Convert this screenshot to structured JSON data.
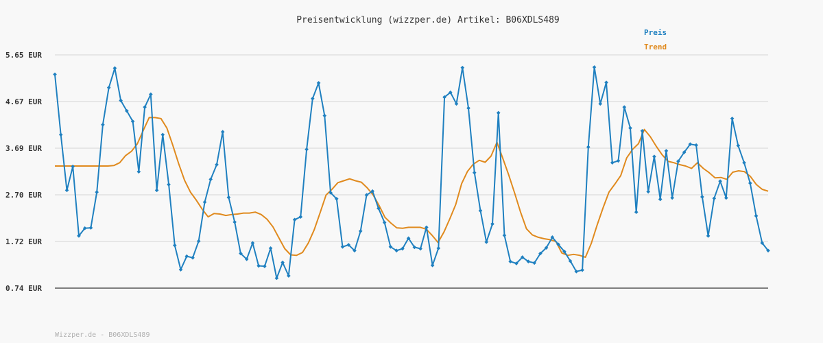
{
  "chart_data": {
    "type": "line",
    "title": "Preisentwicklung (wizzper.de) Artikel: B06XDLS489",
    "footer": "Wizzper.de - B06XDLS489",
    "y_ticks": [
      "5.65 EUR",
      "4.67 EUR",
      "3.69 EUR",
      "2.70 EUR",
      "1.72 EUR",
      "0.74 EUR"
    ],
    "ylim": [
      0.74,
      5.65
    ],
    "grid": true,
    "legend_position": "top-right",
    "colors": {
      "preis": "#1f80c0",
      "trend": "#e08a1e",
      "grid": "#e0e0e0",
      "axis": "#555555"
    },
    "series": [
      {
        "name": "Preis",
        "values": [
          5.24,
          3.97,
          2.8,
          3.3,
          1.84,
          2.0,
          2.01,
          2.76,
          4.18,
          4.96,
          5.37,
          4.69,
          4.47,
          4.25,
          3.19,
          4.55,
          4.82,
          2.8,
          3.97,
          2.92,
          1.64,
          1.13,
          1.41,
          1.38,
          1.73,
          2.55,
          3.03,
          3.34,
          4.03,
          2.65,
          2.13,
          1.47,
          1.35,
          1.69,
          1.21,
          1.2,
          1.58,
          0.95,
          1.28,
          1.0,
          2.18,
          2.24,
          3.66,
          4.73,
          5.06,
          4.37,
          2.75,
          2.62,
          1.61,
          1.65,
          1.53,
          1.94,
          2.7,
          2.78,
          2.42,
          2.12,
          1.61,
          1.53,
          1.57,
          1.79,
          1.6,
          1.57,
          2.02,
          1.22,
          1.58,
          4.76,
          4.86,
          4.62,
          5.38,
          4.53,
          3.17,
          2.37,
          1.71,
          2.09,
          4.43,
          1.85,
          1.3,
          1.26,
          1.39,
          1.3,
          1.27,
          1.47,
          1.59,
          1.81,
          1.66,
          1.51,
          1.31,
          1.09,
          1.12,
          3.71,
          5.39,
          4.62,
          5.07,
          3.38,
          3.42,
          4.55,
          4.11,
          2.34,
          4.05,
          2.77,
          3.51,
          2.61,
          3.63,
          2.64,
          3.41,
          3.6,
          3.77,
          3.75,
          2.66,
          1.84,
          2.63,
          2.99,
          2.64,
          4.31,
          3.74,
          3.38,
          2.95,
          2.26,
          1.69,
          1.53
        ]
      },
      {
        "name": "Trend",
        "values": [
          3.31,
          3.31,
          3.31,
          3.31,
          3.31,
          3.31,
          3.31,
          3.31,
          3.31,
          3.31,
          3.32,
          3.38,
          3.53,
          3.62,
          3.78,
          4.06,
          4.33,
          4.33,
          4.31,
          4.11,
          3.75,
          3.36,
          3.01,
          2.76,
          2.59,
          2.4,
          2.24,
          2.31,
          2.3,
          2.27,
          2.29,
          2.3,
          2.32,
          2.32,
          2.34,
          2.29,
          2.19,
          2.03,
          1.8,
          1.57,
          1.44,
          1.43,
          1.49,
          1.69,
          1.97,
          2.33,
          2.7,
          2.82,
          2.96,
          3.0,
          3.04,
          3.0,
          2.97,
          2.85,
          2.7,
          2.48,
          2.23,
          2.11,
          2.01,
          2.0,
          2.02,
          2.02,
          2.02,
          1.98,
          1.85,
          1.7,
          1.92,
          2.2,
          2.5,
          2.94,
          3.2,
          3.35,
          3.43,
          3.39,
          3.52,
          3.81,
          3.47,
          3.12,
          2.74,
          2.34,
          1.99,
          1.86,
          1.81,
          1.78,
          1.76,
          1.72,
          1.48,
          1.43,
          1.45,
          1.43,
          1.39,
          1.68,
          2.07,
          2.43,
          2.76,
          2.93,
          3.11,
          3.48,
          3.66,
          3.78,
          4.08,
          3.93,
          3.73,
          3.55,
          3.41,
          3.38,
          3.34,
          3.31,
          3.26,
          3.38,
          3.26,
          3.17,
          3.06,
          3.07,
          3.03,
          3.18,
          3.21,
          3.19,
          3.09,
          2.92,
          2.82,
          2.78
        ]
      }
    ]
  }
}
